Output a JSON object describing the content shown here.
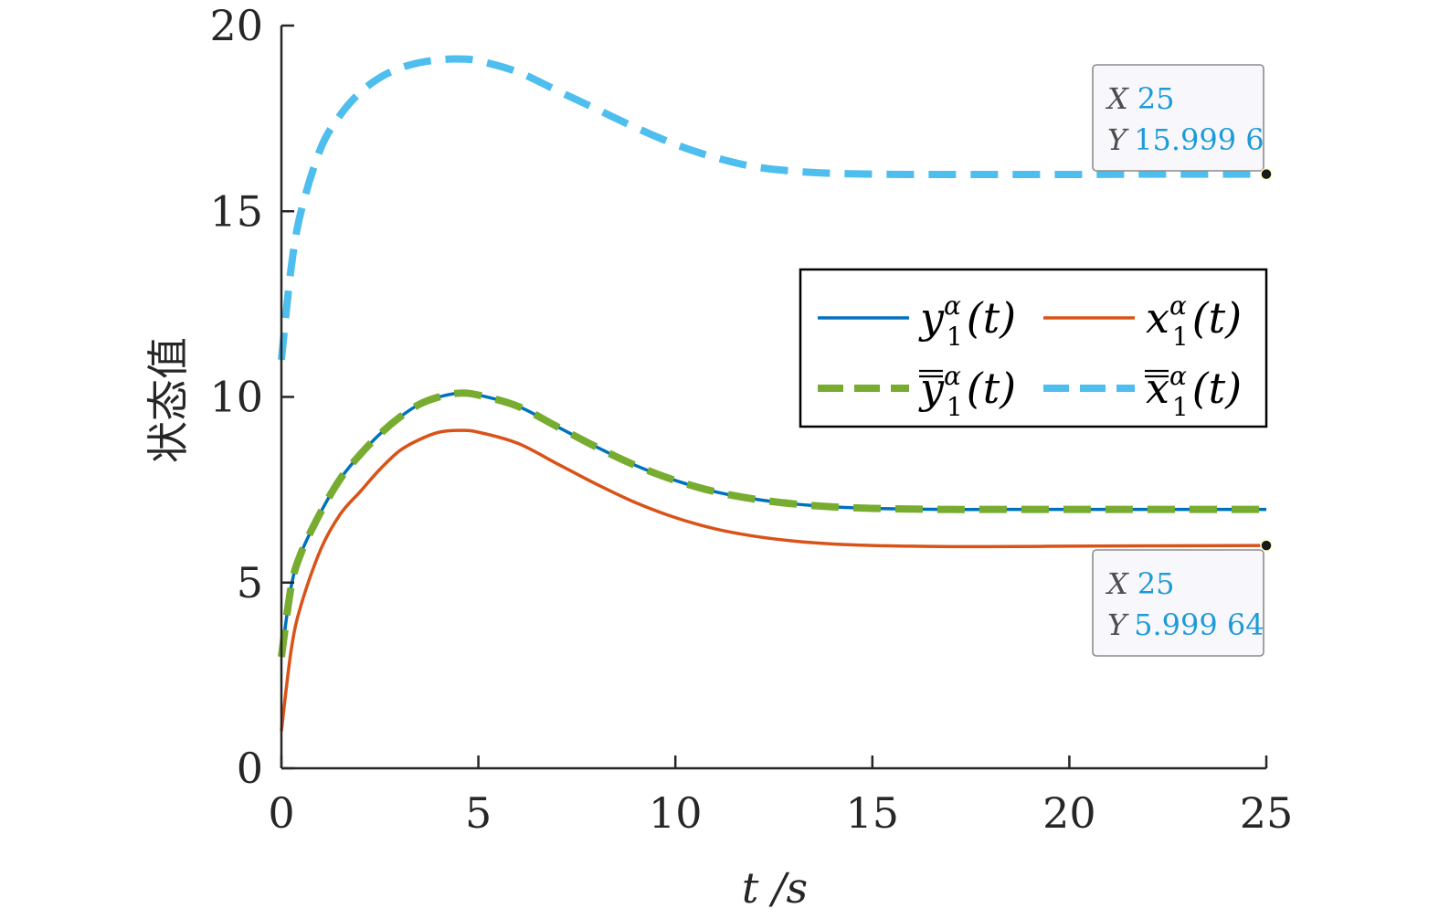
{
  "chart_data": {
    "type": "line",
    "xlabel": "t /s",
    "ylabel": "状态值",
    "xlim": [
      0,
      25
    ],
    "ylim": [
      0,
      20
    ],
    "xticks": [
      0,
      5,
      10,
      15,
      20,
      25
    ],
    "yticks": [
      0,
      5,
      10,
      15,
      20
    ],
    "grid": false,
    "legend_position": "center-right",
    "series": [
      {
        "name": "y_1^α(t)",
        "color": "#0072bd",
        "style": "solid",
        "x": [
          0,
          0.25,
          0.5,
          1,
          1.5,
          2,
          2.5,
          3,
          3.5,
          4,
          4.5,
          5,
          6,
          7,
          8,
          9,
          10,
          11,
          12,
          13,
          14,
          15,
          16,
          17,
          18,
          20,
          22,
          25
        ],
        "y": [
          3.0,
          4.9,
          5.8,
          6.9,
          7.8,
          8.45,
          9.0,
          9.45,
          9.8,
          10.0,
          10.1,
          10.05,
          9.75,
          9.2,
          8.65,
          8.15,
          7.75,
          7.45,
          7.25,
          7.12,
          7.04,
          7.0,
          6.98,
          6.97,
          6.97,
          6.97,
          6.97,
          6.97
        ]
      },
      {
        "name": "x_1^α(t)",
        "color": "#d95319",
        "style": "solid",
        "x": [
          0,
          0.25,
          0.5,
          1,
          1.5,
          2,
          2.5,
          3,
          3.5,
          4,
          4.5,
          5,
          6,
          7,
          8,
          9,
          10,
          11,
          12,
          13,
          14,
          15,
          16,
          17,
          18,
          20,
          22,
          25
        ],
        "y": [
          1.0,
          3.2,
          4.4,
          5.9,
          6.85,
          7.45,
          8.05,
          8.55,
          8.85,
          9.05,
          9.1,
          9.05,
          8.75,
          8.2,
          7.65,
          7.15,
          6.75,
          6.45,
          6.25,
          6.12,
          6.04,
          6.0,
          5.98,
          5.97,
          5.97,
          5.98,
          5.99,
          5.99964
        ]
      },
      {
        "name": "ȳ_1^α(t)",
        "color": "#77ac30",
        "style": "dashed",
        "x": [
          0,
          0.25,
          0.5,
          1,
          1.5,
          2,
          2.5,
          3,
          3.5,
          4,
          4.5,
          5,
          6,
          7,
          8,
          9,
          10,
          11,
          12,
          13,
          14,
          15,
          16,
          17,
          18,
          20,
          22,
          25
        ],
        "y": [
          3.0,
          4.9,
          5.8,
          6.9,
          7.8,
          8.45,
          9.0,
          9.45,
          9.8,
          10.0,
          10.1,
          10.05,
          9.75,
          9.2,
          8.65,
          8.15,
          7.75,
          7.45,
          7.25,
          7.12,
          7.04,
          7.0,
          6.98,
          6.97,
          6.97,
          6.97,
          6.97,
          6.97
        ]
      },
      {
        "name": "x̄_1^α(t)",
        "color": "#4dbeee",
        "style": "dashed",
        "x": [
          0,
          0.25,
          0.5,
          1,
          1.5,
          2,
          2.5,
          3,
          3.5,
          4,
          4.5,
          5,
          6,
          7,
          8,
          9,
          10,
          11,
          12,
          13,
          14,
          15,
          16,
          17,
          18,
          20,
          22,
          25
        ],
        "y": [
          11.0,
          13.5,
          15.0,
          16.7,
          17.6,
          18.2,
          18.6,
          18.85,
          19.0,
          19.08,
          19.1,
          19.05,
          18.75,
          18.25,
          17.75,
          17.25,
          16.8,
          16.45,
          16.2,
          16.08,
          16.02,
          16.0,
          15.99,
          15.99,
          15.99,
          15.99,
          16.0,
          15.9996
        ]
      }
    ],
    "legend": {
      "entries": [
        {
          "main": "y",
          "sub": "1",
          "sup": "α",
          "arg": "(t)",
          "bar": false,
          "series": 0
        },
        {
          "main": "x",
          "sub": "1",
          "sup": "α",
          "arg": "(t)",
          "bar": false,
          "series": 1
        },
        {
          "main": "y",
          "sub": "1",
          "sup": "α",
          "arg": "(t)",
          "bar": true,
          "series": 2
        },
        {
          "main": "x",
          "sub": "1",
          "sup": "α",
          "arg": "(t)",
          "bar": true,
          "series": 3
        }
      ]
    },
    "datatips": [
      {
        "x_label": "X",
        "x_text": "25",
        "y_label": "Y",
        "y_text": "15.999 6",
        "x": 25,
        "y": 15.9996
      },
      {
        "x_label": "X",
        "x_text": "25",
        "y_label": "Y",
        "y_text": "5.999 64",
        "x": 25,
        "y": 5.99964
      }
    ]
  }
}
